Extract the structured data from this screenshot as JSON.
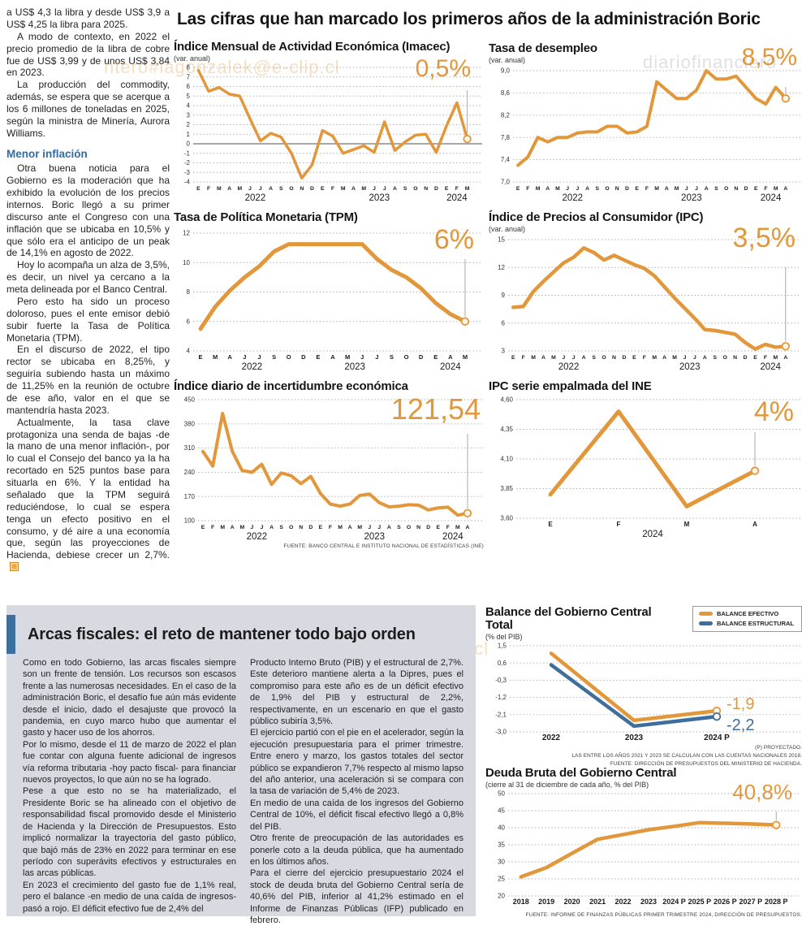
{
  "page": {
    "headline": "Las cifras que han marcado los primeros años de la administración Boric"
  },
  "watermarks": {
    "email_top": "ntero#iagonzalek@e-clip.cl",
    "site": "diariofinanciero",
    "email_bottom": "ero#iagonzalek@e-clip.cl"
  },
  "colors": {
    "accent_orange": "#e2973b",
    "accent_blue": "#3e6f9c",
    "heading_blue": "#2e6da8",
    "panel_bg": "#d7dae0"
  },
  "left_column": {
    "paragraphs": [
      "a US$ 4,3 la libra y desde US$ 3,9 a US$ 4,25 la libra para 2025.",
      "A modo de contexto, en 2022 el precio promedio de la libra de cobre fue de US$ 3,99 y de unos US$ 3,84 en 2023.",
      "La producción del commodity, además, se espera que se acerque a los 6 millones de toneladas en 2025, según la ministra de Minería, Aurora Williams."
    ],
    "subhead": "Menor inflación",
    "paragraphs2": [
      "Otra buena noticia para el Gobierno es la moderación que ha exhibido la evolución de los precios internos. Boric llegó a su primer discurso ante el Congreso con una inflación que se ubicaba en 10,5% y que sólo era el anticipo de un peak de 14,1% en agosto de 2022.",
      "Hoy lo acompaña un alza de 3,5%, es decir, un nivel ya cercano a la meta delineada por el Banco Central.",
      "Pero esto ha sido un proceso doloroso, pues el ente emisor debió subir fuerte la Tasa de Política Monetaria (TPM).",
      "En el discurso de 2022, el tipo rector se ubicaba en 8,25%, y seguiría subiendo hasta un máximo de 11,25% en la reunión de octubre de ese año, valor en el que se mantendría hasta 2023.",
      "Actualmente, la tasa clave protagoniza una senda de bajas -de la mano de una menor inflación-, por lo cual el Consejo del banco ya la ha recortado en 525 puntos base para situarla en 6%. Y la entidad ha señalado que la TPM seguirá reduciéndose, lo cual se espera tenga un efecto positivo en el consumo, y dé aire a una economía que, según las proyecciones de Hacienda, debiese crecer un 2,7%."
    ]
  },
  "fiscal": {
    "headline": "Arcas fiscales: el reto de mantener todo bajo orden",
    "col1": [
      "Como en todo Gobierno, las arcas fiscales siempre son un frente de tensión. Los recursos son escasos frente a las numerosas necesidades. En el caso de la administración Boric, el desafío fue aún más evidente desde el inicio, dado el desajuste que provocó la pandemia, en cuyo marco hubo que aumentar el gasto y hacer uso de los ahorros.",
      "Por lo mismo, desde el 11 de marzo de 2022 el plan fue contar con alguna fuente adicional de ingresos vía reforma tributaria -hoy pacto fiscal- para financiar nuevos proyectos, lo que aún no se ha logrado.",
      "Pese a que esto no se ha materializado, el Presidente Boric se ha alineado con el objetivo de responsabilidad fiscal promovido desde el Ministerio de Hacienda y la Dirección de Presupuestos. Esto implicó normalizar la trayectoria del gasto público, que bajó más de 23% en 2022 para terminar en ese período con superávits efectivos y estructurales en las arcas públicas.",
      "En 2023 el crecimiento del gasto fue de 1,1% real, pero el balance -en medio de una caída de ingresos-  pasó a rojo. El déficit efectivo fue de 2,4% del"
    ],
    "col2": [
      "Producto Interno Bruto (PIB) y el estructural de 2,7%. Este deterioro mantiene alerta a la Dipres, pues el compromiso para este año es de un déficit efectivo de 1,9% del PIB y estructural de 2,2%, respectivamente, en un escenario en que el gasto público subiría 3,5%.",
      "El ejercicio partió con el pie en el acelerador, según la ejecución presupuestaria para el primer trimestre. Entre enero y marzo, los gastos totales del sector público se expandieron 7,7% respecto al mismo lapso del año anterior, una aceleración si se compara con la tasa de variación de 5,4% de 2023.",
      "En medio de una caída de los ingresos del Gobierno Central de 10%, el déficit fiscal efectivo llegó a 0,8% del PIB.",
      "Otro frente de preocupación de las autoridades es ponerle coto a la deuda pública, que ha aumentado en los últimos años.",
      "Para el cierre del ejercicio presupuestario 2024 el stock de deuda bruta del Gobierno Central sería de 40,6% del PIB, inferior al 41,2% estimado en el Informe de Finanzas Públicas (IFP) publicado en febrero."
    ]
  },
  "chart_data": [
    {
      "id": "imacec",
      "type": "line",
      "title": "Índice Mensual de Actividad Económica (Imacec)",
      "subtitle": "(var. anual)",
      "big_value": "0,5%",
      "ylim": [
        -4,
        8
      ],
      "zero_line": true,
      "y_ticks": [
        {
          "v": 8,
          "t": "8"
        },
        {
          "v": 7,
          "t": "7"
        },
        {
          "v": 6,
          "t": "6"
        },
        {
          "v": 5,
          "t": "5"
        },
        {
          "v": 4,
          "t": "4"
        },
        {
          "v": 3,
          "t": "3"
        },
        {
          "v": 2,
          "t": "2"
        },
        {
          "v": 1,
          "t": "1"
        },
        {
          "v": 0,
          "t": "0"
        },
        {
          "v": -1,
          "t": "-1"
        },
        {
          "v": -2,
          "t": "-2"
        },
        {
          "v": -3,
          "t": "-3"
        },
        {
          "v": -4,
          "t": "-4"
        }
      ],
      "x_labels": [
        "E",
        "F",
        "M",
        "A",
        "M",
        "J",
        "J",
        "A",
        "S",
        "O",
        "N",
        "D",
        "E",
        "F",
        "M",
        "A",
        "M",
        "J",
        "J",
        "A",
        "S",
        "O",
        "N",
        "D",
        "E",
        "F",
        "M"
      ],
      "years": [
        {
          "label": "2022",
          "at": 5.5
        },
        {
          "label": "2023",
          "at": 17.5
        },
        {
          "label": "2024",
          "at": 25
        }
      ],
      "series": [
        {
          "name": "Imacec",
          "color": "#e2973b",
          "values": [
            7.7,
            5.5,
            5.9,
            5.2,
            5.0,
            2.6,
            0.3,
            1.1,
            0.7,
            -1.0,
            -3.6,
            -2.2,
            1.4,
            0.8,
            -1.0,
            -0.6,
            -0.2,
            -0.9,
            2.3,
            -0.7,
            0.2,
            0.9,
            1.0,
            -0.9,
            1.9,
            4.3,
            0.5
          ]
        }
      ]
    },
    {
      "id": "desempleo",
      "type": "line",
      "title": "Tasa de desempleo",
      "subtitle": "(var. anual)",
      "big_value": "8,5%",
      "ylim": [
        7.0,
        9.0
      ],
      "y_ticks": [
        {
          "v": 9,
          "t": "9,0"
        },
        {
          "v": 8.6,
          "t": "8,6"
        },
        {
          "v": 8.2,
          "t": "8,2"
        },
        {
          "v": 7.8,
          "t": "7,8"
        },
        {
          "v": 7.4,
          "t": "7,4"
        },
        {
          "v": 7,
          "t": "7,0"
        }
      ],
      "x_labels": [
        "E",
        "F",
        "M",
        "A",
        "M",
        "J",
        "J",
        "A",
        "S",
        "O",
        "N",
        "D",
        "E",
        "F",
        "M",
        "A",
        "M",
        "J",
        "J",
        "A",
        "S",
        "O",
        "N",
        "D",
        "E",
        "F",
        "M",
        "A"
      ],
      "years": [
        {
          "label": "2022",
          "at": 5.5
        },
        {
          "label": "2023",
          "at": 17.5
        },
        {
          "label": "2024",
          "at": 25.5
        }
      ],
      "series": [
        {
          "name": "Tasa de desempleo",
          "color": "#e2973b",
          "values": [
            7.3,
            7.45,
            7.8,
            7.72,
            7.8,
            7.8,
            7.88,
            7.9,
            7.9,
            8.0,
            8.0,
            7.88,
            7.9,
            8.0,
            8.8,
            8.65,
            8.5,
            8.5,
            8.65,
            9.0,
            8.85,
            8.85,
            8.9,
            8.7,
            8.5,
            8.4,
            8.7,
            8.5
          ]
        }
      ]
    },
    {
      "id": "tpm",
      "type": "line",
      "title": "Tasa de Política Monetaria (TPM)",
      "big_value": "6%",
      "ylim": [
        4,
        12
      ],
      "y_ticks": [
        {
          "v": 12,
          "t": "12"
        },
        {
          "v": 10,
          "t": "10"
        },
        {
          "v": 8,
          "t": "8"
        },
        {
          "v": 6,
          "t": "6"
        },
        {
          "v": 4,
          "t": "4"
        }
      ],
      "x_labels": [
        "E",
        "M",
        "A",
        "J",
        "J",
        "S",
        "O",
        "D",
        "E",
        "A",
        "M",
        "J",
        "J",
        "S",
        "O",
        "D",
        "E",
        "A",
        "M"
      ],
      "years": [
        {
          "label": "2022",
          "at": 3.5
        },
        {
          "label": "2023",
          "at": 10.5
        },
        {
          "label": "2024",
          "at": 17
        }
      ],
      "series": [
        {
          "name": "TPM",
          "color": "#e2973b",
          "values": [
            5.5,
            7.0,
            8.1,
            9.0,
            9.75,
            10.75,
            11.25,
            11.25,
            11.25,
            11.25,
            11.25,
            11.25,
            10.25,
            9.5,
            9.0,
            8.25,
            7.25,
            6.5,
            6.0
          ]
        }
      ]
    },
    {
      "id": "ipc",
      "type": "line",
      "title": "Índice de Precios al Consumidor (IPC)",
      "subtitle": "(var. anual)",
      "big_value": "3,5%",
      "ylim": [
        3,
        15
      ],
      "y_ticks": [
        {
          "v": 15,
          "t": "15"
        },
        {
          "v": 12,
          "t": "12"
        },
        {
          "v": 9,
          "t": "9"
        },
        {
          "v": 6,
          "t": "6"
        },
        {
          "v": 3,
          "t": "3"
        }
      ],
      "x_labels": [
        "E",
        "F",
        "M",
        "A",
        "M",
        "J",
        "J",
        "A",
        "S",
        "O",
        "N",
        "D",
        "E",
        "F",
        "M",
        "A",
        "M",
        "J",
        "J",
        "A",
        "S",
        "O",
        "N",
        "D",
        "E",
        "F",
        "M",
        "A"
      ],
      "years": [
        {
          "label": "2022",
          "at": 5.5
        },
        {
          "label": "2023",
          "at": 17.5
        },
        {
          "label": "2024",
          "at": 25.5
        }
      ],
      "series": [
        {
          "name": "IPC",
          "color": "#e2973b",
          "values": [
            7.7,
            7.8,
            9.4,
            10.5,
            11.5,
            12.5,
            13.1,
            14.1,
            13.6,
            12.8,
            13.3,
            12.8,
            12.3,
            11.9,
            11.1,
            9.9,
            8.7,
            7.6,
            6.5,
            5.3,
            5.2,
            5.0,
            4.8,
            3.9,
            3.2,
            3.7,
            3.4,
            3.5
          ]
        }
      ]
    },
    {
      "id": "incertidumbre",
      "type": "line",
      "title": "Índice diario de incertidumbre económica",
      "big_value": "121,54",
      "ylim": [
        100,
        450
      ],
      "y_ticks": [
        {
          "v": 450,
          "t": "450"
        },
        {
          "v": 380,
          "t": "380"
        },
        {
          "v": 310,
          "t": "310"
        },
        {
          "v": 240,
          "t": "240"
        },
        {
          "v": 170,
          "t": "170"
        },
        {
          "v": 100,
          "t": "100"
        }
      ],
      "x_labels": [
        "E",
        "F",
        "M",
        "A",
        "M",
        "J",
        "J",
        "A",
        "S",
        "O",
        "N",
        "D",
        "E",
        "F",
        "M",
        "A",
        "M",
        "J",
        "J",
        "A",
        "S",
        "O",
        "N",
        "D",
        "E",
        "F",
        "M",
        "A"
      ],
      "years": [
        {
          "label": "2022",
          "at": 5.5
        },
        {
          "label": "2023",
          "at": 17.5
        },
        {
          "label": "2024",
          "at": 25.5
        }
      ],
      "series": [
        {
          "name": "Incertidumbre económica",
          "color": "#e2973b",
          "values": [
            300,
            258,
            410,
            300,
            245,
            240,
            263,
            205,
            238,
            230,
            207,
            228,
            178,
            148,
            142,
            148,
            173,
            177,
            152,
            140,
            142,
            146,
            145,
            131,
            137,
            139,
            116,
            121.54
          ]
        }
      ],
      "source": "FUENTE: BANCO CENTRAL E INSTITUTO NACIONAL DE ESTADÍSTICAS (INE)"
    },
    {
      "id": "empalmada",
      "type": "line",
      "title": "IPC serie empalmada del INE",
      "big_value": "4%",
      "ylim": [
        3.6,
        4.6
      ],
      "y_ticks": [
        {
          "v": 4.6,
          "t": "4,60"
        },
        {
          "v": 4.35,
          "t": "4,35"
        },
        {
          "v": 4.1,
          "t": "4,10"
        },
        {
          "v": 3.85,
          "t": "3,85"
        },
        {
          "v": 3.6,
          "t": "3,60"
        }
      ],
      "x_labels": [
        "E",
        "F",
        "M",
        "A"
      ],
      "years": [
        {
          "label": "2024",
          "at": 1.5
        }
      ],
      "series": [
        {
          "name": "IPC serie empalmada",
          "color": "#e2973b",
          "values": [
            3.8,
            4.5,
            3.7,
            4.0
          ]
        }
      ]
    },
    {
      "id": "balance",
      "type": "line",
      "title": "Balance del Gobierno Central Total",
      "subtitle": "(% del PIB)",
      "ylim": [
        -3.0,
        1.5
      ],
      "y_ticks": [
        {
          "v": 1.5,
          "t": "1,5"
        },
        {
          "v": 0.6,
          "t": "0,6"
        },
        {
          "v": -0.3,
          "t": "-0,3"
        },
        {
          "v": -1.2,
          "t": "-1,2"
        },
        {
          "v": -2.1,
          "t": "-2,1"
        },
        {
          "v": -3.0,
          "t": "-3,0"
        }
      ],
      "x_labels": [
        "2022",
        "2023",
        "2024 P"
      ],
      "years": [],
      "series": [
        {
          "name": "BALANCE EFECTIVO",
          "color": "#e2973b",
          "values": [
            1.1,
            -2.4,
            -1.9
          ],
          "end_label": "-1,9",
          "end_dy": -2
        },
        {
          "name": "BALANCE ESTRUCTURAL",
          "color": "#3e6f9c",
          "values": [
            0.5,
            -2.7,
            -2.2
          ],
          "end_label": "-2,2",
          "end_dy": 17
        }
      ],
      "notes": [
        "(P) PROYECTADO.",
        "LAS ENTRE LOS AÑOS 2021 Y 2023 SE CALCULAN  CON LAS CUENTAS NACIONALES 2018.",
        "FUENTE: DIRECCIÓN DE PRESUPUESTOS DEL MINISTERIO DE HACIENDA."
      ]
    },
    {
      "id": "deuda",
      "type": "line",
      "title": "Deuda Bruta del Gobierno Central",
      "subtitle": "(cierre al 31 de diciembre de cada año, % del PIB)",
      "big_value": "40,8%",
      "ylim": [
        20,
        50
      ],
      "y_ticks": [
        {
          "v": 50,
          "t": "50"
        },
        {
          "v": 45,
          "t": "45"
        },
        {
          "v": 40,
          "t": "40"
        },
        {
          "v": 35,
          "t": "35"
        },
        {
          "v": 30,
          "t": "30"
        },
        {
          "v": 25,
          "t": "25"
        },
        {
          "v": 20,
          "t": "20"
        }
      ],
      "x_labels": [
        "2018",
        "2019",
        "2020",
        "2021",
        "2022",
        "2023",
        "2024 P",
        "2025 P",
        "2026 P",
        "2027 P",
        "2028 P"
      ],
      "years": [],
      "series": [
        {
          "name": "Deuda bruta",
          "color": "#e2973b",
          "values": [
            25.6,
            28.3,
            32.5,
            36.6,
            38.0,
            39.4,
            40.4,
            41.5,
            41.3,
            41.1,
            40.8
          ]
        }
      ],
      "source": "FUENTE: INFORME DE FINANZAS PÚBLICAS PRIMER TRIMESTRE 2024, DIRECCIÓN DE PRESUPUESTOS."
    }
  ]
}
